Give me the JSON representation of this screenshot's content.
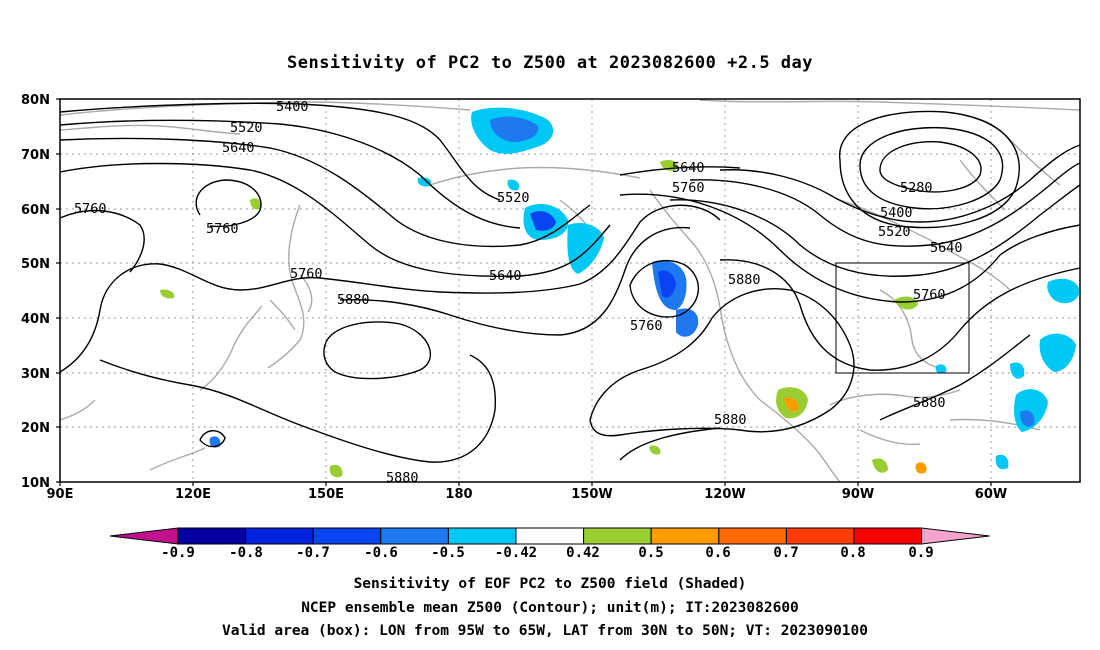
{
  "title": "Sensitivity of PC2 to Z500 at 2023082600 +2.5 day",
  "map": {
    "lat_labels": [
      "80N",
      "70N",
      "60N",
      "50N",
      "40N",
      "30N",
      "20N",
      "10N"
    ],
    "lon_labels": [
      "90E",
      "120E",
      "150E",
      "180",
      "150W",
      "120W",
      "90W",
      "60W"
    ],
    "contour_labels": [
      "5400",
      "5520",
      "5640",
      "5760",
      "5760",
      "5760",
      "5520",
      "5640",
      "5640",
      "5760",
      "5880",
      "5880",
      "5760",
      "5880",
      "5280",
      "5400",
      "5520",
      "5640",
      "5760",
      "5880",
      "5880"
    ],
    "box": {
      "lon_from": "95W",
      "lon_to": "65W",
      "lat_from": "30N",
      "lat_to": "50N"
    },
    "colors": {
      "coast": "#aaaaaa",
      "contour": "#000000",
      "grid": "#999999"
    }
  },
  "colorbar": {
    "labels": [
      "-0.9",
      "-0.8",
      "-0.7",
      "-0.6",
      "-0.5",
      "-0.42",
      "0.42",
      "0.5",
      "0.6",
      "0.7",
      "0.8",
      "0.9"
    ],
    "colors": [
      "#c0108c",
      "#0000a0",
      "#0022dd",
      "#0a44f0",
      "#1e78f0",
      "#00c8f5",
      "#ffffff",
      "#9acd32",
      "#ff9c00",
      "#ff6a00",
      "#ff3c00",
      "#ff0000",
      "#f4a4cc"
    ]
  },
  "footer": {
    "line1": "Sensitivity of EOF PC2 to Z500 field (Shaded)",
    "line2": "NCEP ensemble mean Z500 (Contour); unit(m); IT:2023082600",
    "line3": "Valid area (box): LON from 95W to 65W, LAT from 30N to 50N; VT: 2023090100"
  }
}
